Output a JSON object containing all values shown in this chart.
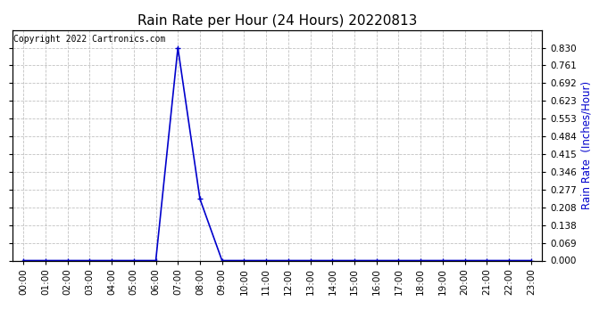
{
  "title": "Rain Rate per Hour (24 Hours) 20220813",
  "ylabel": "Rain Rate  (Inches/Hour)",
  "copyright": "Copyright 2022 Cartronics.com",
  "background_color": "#ffffff",
  "line_color": "#0000cc",
  "grid_color": "#bbbbbb",
  "title_color": "#000000",
  "ylabel_color": "#0000cc",
  "copyright_color": "#000000",
  "x_hours": [
    0,
    1,
    2,
    3,
    4,
    5,
    6,
    7,
    8,
    9,
    10,
    11,
    12,
    13,
    14,
    15,
    16,
    17,
    18,
    19,
    20,
    21,
    22,
    23
  ],
  "y_values": [
    0,
    0,
    0,
    0,
    0,
    0,
    0,
    0.83,
    0.24,
    0,
    0,
    0,
    0,
    0,
    0,
    0,
    0,
    0,
    0,
    0,
    0,
    0,
    0,
    0
  ],
  "ylim": [
    0,
    0.899
  ],
  "yticks": [
    0.0,
    0.069,
    0.138,
    0.208,
    0.277,
    0.346,
    0.415,
    0.484,
    0.553,
    0.623,
    0.692,
    0.761,
    0.83
  ],
  "marker": "+",
  "marker_size": 4,
  "line_width": 1.2,
  "figsize": [
    6.9,
    3.75
  ],
  "dpi": 100,
  "title_fontsize": 11,
  "tick_fontsize": 7.5,
  "ylabel_fontsize": 8.5,
  "copyright_fontsize": 7
}
